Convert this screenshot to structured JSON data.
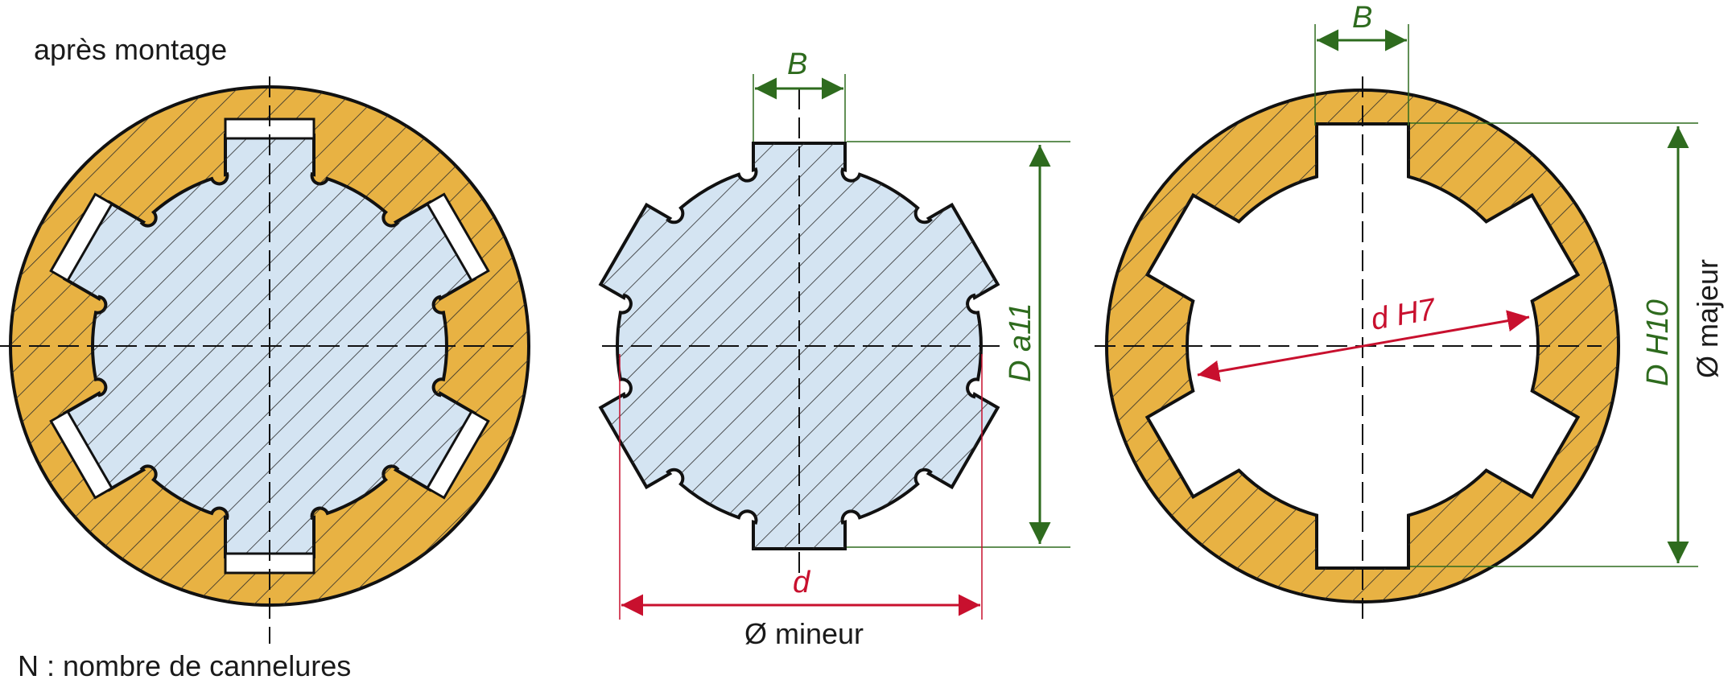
{
  "figure": {
    "title": "après montage",
    "caption": "N : nombre de cannelures",
    "colors": {
      "hub": "#e8b243",
      "shaft": "#d4e4f2",
      "outline": "#111111",
      "dim_green": "#2e6b1e",
      "dim_red": "#c8102e",
      "key_slot": "#ffffff"
    },
    "spline_count": 6
  },
  "shaft_view": {
    "width_label": "B",
    "major_label": "D a11",
    "minor_label": "d",
    "minor_caption": "Ø mineur"
  },
  "hub_view": {
    "width_label": "B",
    "minor_label": "d H7",
    "major_label": "D H10",
    "major_caption": "Ø majeur"
  }
}
